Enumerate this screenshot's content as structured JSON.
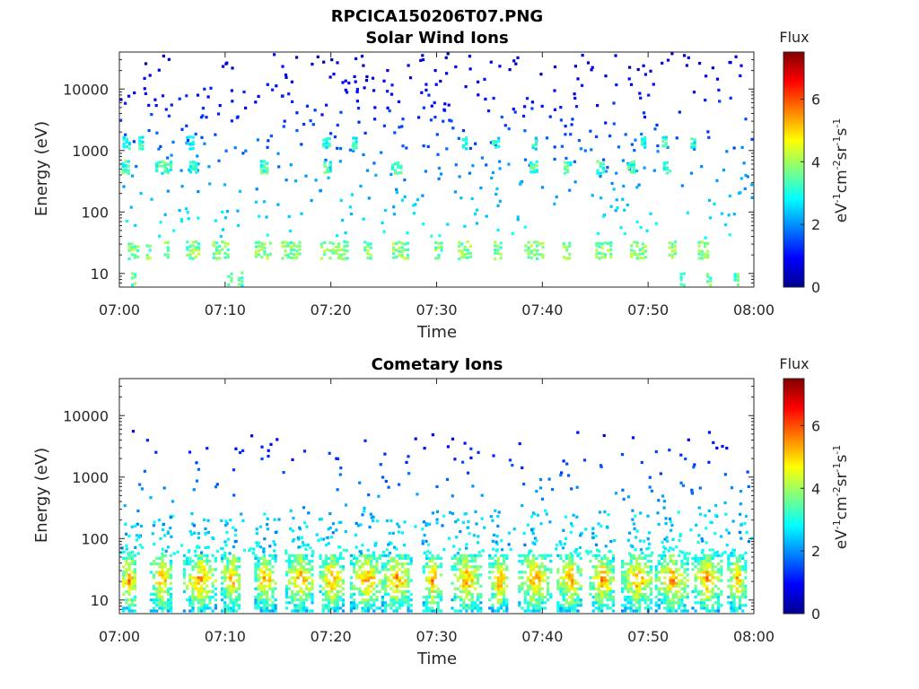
{
  "figure_title": "RPCICA150206T07.PNG",
  "chart_data": [
    {
      "type": "heatmap",
      "title": "Solar Wind Ions",
      "xlabel": "Time",
      "ylabel": "Energy (eV)",
      "x_ticks": [
        "07:00",
        "07:10",
        "07:20",
        "07:30",
        "07:40",
        "07:50",
        "08:00"
      ],
      "xlim": [
        "07:00",
        "08:00"
      ],
      "y_scale": "log",
      "y_ticks": [
        "10",
        "100",
        "1000",
        "10000"
      ],
      "ylim": [
        6,
        40000
      ],
      "colorbar": {
        "title": "Flux",
        "label": "eV-1cm-2sr-1s-1",
        "ticks": [
          "0",
          "2",
          "4",
          "6"
        ],
        "range": [
          0,
          7.5
        ],
        "colormap": "jet"
      },
      "bands": [
        {
          "energy": 25,
          "flux": 3.6,
          "intervals_min": [
            [
              0.8,
              1.8
            ],
            [
              2.5,
              3.0
            ],
            [
              4.2,
              4.6
            ],
            [
              6.3,
              7.5
            ],
            [
              8.8,
              10.3
            ],
            [
              12.8,
              14.2
            ],
            [
              15.3,
              17.0
            ],
            [
              19.0,
              21.5
            ],
            [
              23.1,
              23.9
            ],
            [
              25.8,
              27.4
            ],
            [
              29.8,
              30.6
            ],
            [
              32.0,
              33.2
            ],
            [
              35.4,
              36.0
            ],
            [
              38.3,
              40.0
            ],
            [
              41.9,
              42.7
            ],
            [
              45.0,
              46.4
            ],
            [
              48.3,
              49.8
            ],
            [
              51.9,
              52.6
            ],
            [
              54.7,
              55.6
            ]
          ]
        },
        {
          "energy": 560,
          "flux": 3.1,
          "intervals_min": [
            [
              0.2,
              0.9
            ],
            [
              3.4,
              4.9
            ],
            [
              6.6,
              7.2
            ],
            [
              13.3,
              14.0
            ],
            [
              19.3,
              20.0
            ],
            [
              25.7,
              26.6
            ],
            [
              38.8,
              39.5
            ],
            [
              42.0,
              42.6
            ],
            [
              45.1,
              45.7
            ],
            [
              48.0,
              48.6
            ],
            [
              51.4,
              52.2
            ]
          ]
        },
        {
          "energy": 1400,
          "flux": 2.8,
          "intervals_min": [
            [
              0.3,
              0.9
            ],
            [
              1.8,
              2.2
            ],
            [
              6.3,
              6.9
            ],
            [
              19.2,
              19.9
            ],
            [
              22.0,
              22.4
            ],
            [
              32.4,
              32.9
            ],
            [
              35.2,
              35.8
            ],
            [
              39.0,
              39.3
            ],
            [
              49.3,
              49.8
            ],
            [
              51.3,
              51.7
            ],
            [
              54.0,
              54.5
            ]
          ]
        },
        {
          "energy": 8,
          "flux": 3.3,
          "intervals_min": [
            [
              1.1,
              1.5
            ],
            [
              10.2,
              10.6
            ],
            [
              11.2,
              11.5
            ],
            [
              53.0,
              53.4
            ],
            [
              55.5,
              55.9
            ],
            [
              58.1,
              58.6
            ]
          ]
        }
      ],
      "scatter": {
        "energy_range": [
          40,
          40000
        ],
        "flux_range": [
          0.5,
          2.8
        ],
        "density": "sparse"
      }
    },
    {
      "type": "heatmap",
      "title": "Cometary Ions",
      "xlabel": "Time",
      "ylabel": "Energy (eV)",
      "x_ticks": [
        "07:00",
        "07:10",
        "07:20",
        "07:30",
        "07:40",
        "07:50",
        "08:00"
      ],
      "xlim": [
        "07:00",
        "08:00"
      ],
      "y_scale": "log",
      "y_ticks": [
        "10",
        "100",
        "1000",
        "10000"
      ],
      "ylim": [
        6,
        40000
      ],
      "colorbar": {
        "title": "Flux",
        "label": "eV-1cm-2sr-1s-1",
        "ticks": [
          "0",
          "2",
          "4",
          "6"
        ],
        "range": [
          0,
          7.5
        ],
        "colormap": "jet"
      },
      "bursts_min": [
        0.8,
        3.9,
        7.6,
        10.5,
        13.8,
        17.0,
        20.0,
        23.3,
        26.2,
        29.5,
        32.7,
        35.8,
        39.2,
        42.5,
        45.6,
        48.9,
        52.2,
        55.5,
        58.3
      ],
      "burst_energy_range": [
        7,
        60
      ],
      "burst_peak_flux": 5.6,
      "scatter": {
        "energy_range": [
          60,
          6000
        ],
        "flux_range": [
          0.8,
          3.0
        ],
        "density": "sparse"
      }
    }
  ]
}
